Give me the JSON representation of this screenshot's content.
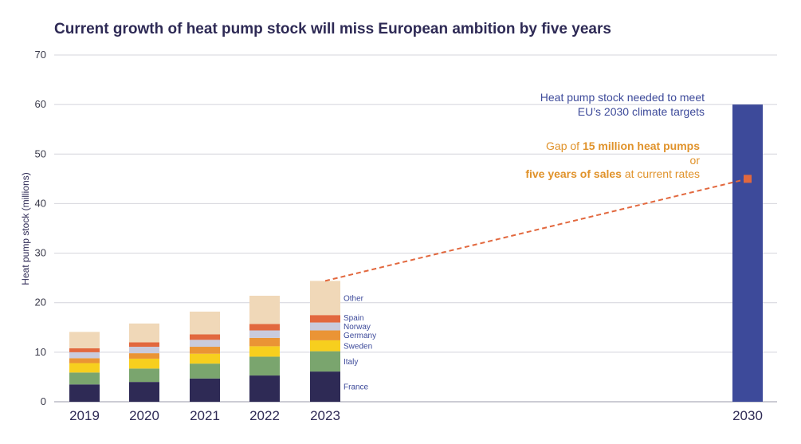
{
  "chart_data": {
    "type": "bar",
    "stacked": true,
    "title": "Current growth of heat pump stock will miss European ambition by five years",
    "ylabel": "Heat pump stock (millions)",
    "xlabel": "",
    "ylim": [
      0,
      70
    ],
    "yticks": [
      0,
      10,
      20,
      30,
      40,
      50,
      60,
      70
    ],
    "grid": true,
    "categories": [
      "2019",
      "2020",
      "2021",
      "2022",
      "2023"
    ],
    "series": [
      {
        "name": "France",
        "color": "#2e2a55",
        "values": [
          3.5,
          4.0,
          4.7,
          5.3,
          6.1
        ]
      },
      {
        "name": "Italy",
        "color": "#7aa56e",
        "values": [
          2.4,
          2.7,
          3.0,
          3.8,
          4.1
        ]
      },
      {
        "name": "Sweden",
        "color": "#f7cf1e",
        "values": [
          1.9,
          2.0,
          2.0,
          2.1,
          2.2
        ]
      },
      {
        "name": "Germany",
        "color": "#ea9435",
        "values": [
          1.0,
          1.1,
          1.4,
          1.7,
          2.0
        ]
      },
      {
        "name": "Norway",
        "color": "#c9cbdd",
        "values": [
          1.2,
          1.3,
          1.4,
          1.5,
          1.6
        ]
      },
      {
        "name": "Spain",
        "color": "#e2683e",
        "values": [
          0.8,
          0.9,
          1.1,
          1.3,
          1.5
        ]
      },
      {
        "name": "Other",
        "color": "#f0d8b8",
        "values": [
          3.3,
          3.8,
          4.6,
          5.7,
          6.9
        ]
      }
    ],
    "target": {
      "category": "2030",
      "value": 60,
      "color": "#3d4a9a"
    },
    "trend": {
      "from_category": "2023",
      "from_value": 24.4,
      "to_category": "2030",
      "to_value": 45,
      "color": "#e2683e",
      "style": "dashed"
    },
    "annotations": {
      "target_line1": "Heat pump stock needed to meet",
      "target_line2": "EU’s 2030 climate targets",
      "gap_prefix": "Gap of ",
      "gap_bold": "15 million heat pumps",
      "gap_or": "or",
      "gap_bold2": "five years of sales",
      "gap_suffix": " at current rates"
    }
  }
}
